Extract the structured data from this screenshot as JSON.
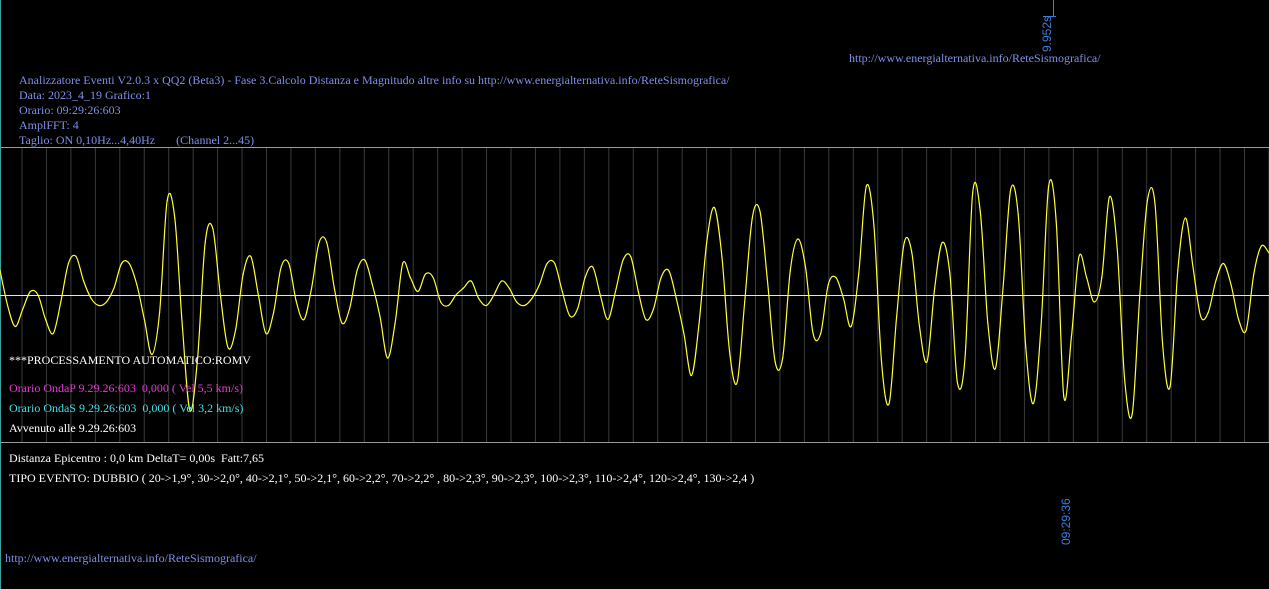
{
  "header": {
    "url_top": "http://www.energialternativa.info/ReteSismografica/",
    "title_line": "Analizzatore Eventi V2.0.3 x QQ2 (Beta3) - Fase 3.Calcolo Distanza e Magnitudo altre info su http://www.energialternativa.info/ReteSismografica/",
    "data_line": "Data: 2023_4_19 Grafico:1",
    "orario_line": "Orario: 09:29:26:603",
    "ampl_line": "AmplFFT: 4",
    "taglio_line": "Taglio: ON 0,10Hz...4,40Hz       (Channel 2...45)"
  },
  "markers": {
    "duration_label": "9.952s",
    "time_label": "09:29:36"
  },
  "processing": {
    "title": "***PROCESSAMENTO AUTOMATICO:ROMV",
    "onda_p": "Orario OndaP 9.29.26:603  0,000 ( Vel 5,5 km/s)",
    "onda_s": "Orario OndaS 9.29.26:603  0,000 ( Vel 3,2 km/s)",
    "avvenuto": "Avvenuto alle 9.29.26:603"
  },
  "results": {
    "distanza": "Distanza Epicentro : 0,0 km DeltaT= 0,00s  Fatt:7,65",
    "tipo_evento": "TIPO EVENTO: DUBBIO ( 20->1,9°, 30->2,0°, 40->2,1°, 50->2,1°, 60->2,2°, 70->2,2° , 80->2,3°, 90->2,3°, 100->2,3°, 110->2,4°, 120->2,4°, 130->2,4 )"
  },
  "footer": {
    "url_bottom": "http://www.energialternativa.info/ReteSismografica/"
  },
  "colors": {
    "background": "#000000",
    "trace": "#ffff33",
    "baseline": "#e8e8c8",
    "gridline": "#3a3a3a",
    "frame": "#9a9a9a",
    "text_blue": "#7f8fe8",
    "onda_p": "#e83ad6",
    "onda_s": "#3fe0e8",
    "marker_blue": "#3a7fe0"
  },
  "chart_data": {
    "type": "line",
    "title": "",
    "xlabel": "",
    "ylabel": "",
    "grid": "vertical",
    "series": [
      {
        "values": [
          0.35,
          -0.15,
          -0.45,
          -0.2,
          0.05,
          0.0,
          -0.35,
          -0.55,
          -0.1,
          0.45,
          0.55,
          0.2,
          -0.05,
          -0.15,
          -0.1,
          0.1,
          0.45,
          0.45,
          0.15,
          -0.35,
          -0.85,
          -0.25,
          1.35,
          1.1,
          -0.45,
          -1.65,
          -0.9,
          0.75,
          0.95,
          0.0,
          -0.75,
          -0.5,
          0.3,
          0.55,
          0.0,
          -0.55,
          -0.25,
          0.4,
          0.45,
          -0.1,
          -0.35,
          0.1,
          0.75,
          0.75,
          0.1,
          -0.4,
          -0.2,
          0.35,
          0.5,
          0.15,
          -0.3,
          -0.9,
          -0.4,
          0.45,
          0.25,
          0.05,
          0.3,
          0.25,
          -0.1,
          -0.15,
          0.0,
          0.1,
          0.2,
          -0.05,
          -0.15,
          0.0,
          0.2,
          0.1,
          -0.1,
          -0.15,
          -0.05,
          0.15,
          0.45,
          0.45,
          0.05,
          -0.3,
          -0.2,
          0.25,
          0.4,
          0.0,
          -0.35,
          0.05,
          0.5,
          0.55,
          0.05,
          -0.35,
          -0.2,
          0.25,
          0.35,
          -0.05,
          -0.55,
          -1.15,
          -0.4,
          0.75,
          1.25,
          0.55,
          -0.8,
          -1.25,
          -0.1,
          1.1,
          1.2,
          0.2,
          -0.95,
          -0.9,
          0.35,
          0.8,
          0.4,
          -0.55,
          -0.55,
          0.15,
          0.25,
          -0.05,
          -0.45,
          0.3,
          1.55,
          1.0,
          -0.95,
          -1.55,
          -0.3,
          0.75,
          0.6,
          -0.45,
          -0.95,
          0.1,
          0.75,
          0.3,
          -1.25,
          -0.9,
          1.45,
          1.2,
          -0.4,
          -1.05,
          0.1,
          1.5,
          1.15,
          -0.75,
          -1.55,
          -0.45,
          1.55,
          1.05,
          -1.45,
          -0.6,
          0.55,
          0.25,
          -0.1,
          0.25,
          1.4,
          0.7,
          -1.2,
          -1.7,
          0.0,
          1.35,
          1.3,
          -0.7,
          -1.3,
          0.35,
          1.1,
          0.4,
          -0.3,
          -0.25,
          0.2,
          0.45,
          0.15,
          -0.35,
          -0.5,
          0.3,
          0.7,
          0.6
        ]
      }
    ]
  }
}
